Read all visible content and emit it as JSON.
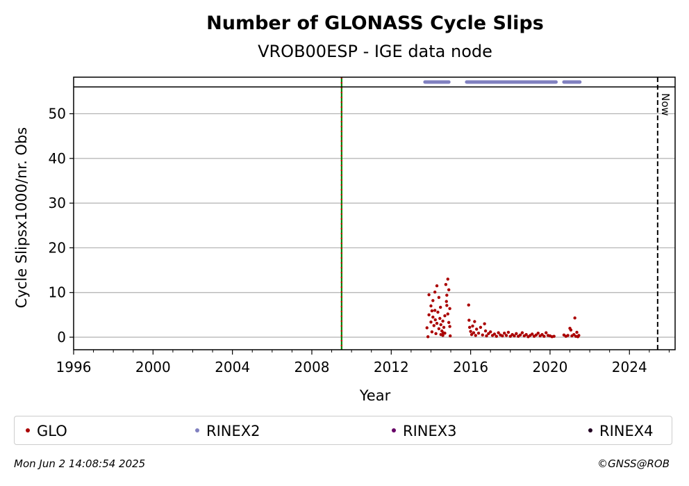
{
  "chart_data": {
    "type": "scatter",
    "title": "Number of GLONASS Cycle Slips",
    "subtitle": "VROB00ESP - IGE data node",
    "xlabel": "Year",
    "ylabel": "Cycle Slipsx1000/nr. Obs",
    "xlim": [
      1996,
      2026.3
    ],
    "ylim": [
      -2.8,
      56
    ],
    "x_ticks": [
      1996,
      2000,
      2004,
      2008,
      2012,
      2016,
      2020,
      2024
    ],
    "x_tick_labels": [
      "1996",
      "2000",
      "2004",
      "2008",
      "2012",
      "2016",
      "2020",
      "2024"
    ],
    "y_ticks": [
      0,
      10,
      20,
      30,
      40,
      50
    ],
    "y_tick_labels": [
      "0",
      "10",
      "20",
      "30",
      "40",
      "50"
    ],
    "grid": "horizontal",
    "vertical_lines": [
      {
        "x": 2009.5,
        "style": "solid+dotted",
        "colors": [
          "#008000",
          "#cc0000"
        ]
      },
      {
        "x": 2025.42,
        "style": "dashed",
        "color": "#000000",
        "label": "Now"
      }
    ],
    "rinex_availability": [
      {
        "name": "RINEX2",
        "ranges": [
          [
            2013.7,
            2014.9
          ],
          [
            2015.8,
            2020.3
          ],
          [
            2020.7,
            2021.5
          ]
        ]
      }
    ],
    "series": [
      {
        "name": "GLO",
        "color": "#aa0000",
        "points": [
          [
            2013.8,
            2.1
          ],
          [
            2013.9,
            5.0
          ],
          [
            2013.9,
            9.5
          ],
          [
            2014.0,
            3.4
          ],
          [
            2014.0,
            7.0
          ],
          [
            2014.05,
            1.2
          ],
          [
            2014.1,
            4.5
          ],
          [
            2014.1,
            8.2
          ],
          [
            2014.15,
            2.6
          ],
          [
            2014.2,
            10.1
          ],
          [
            2014.2,
            6.0
          ],
          [
            2014.25,
            0.8
          ],
          [
            2014.3,
            11.5
          ],
          [
            2014.3,
            3.1
          ],
          [
            2014.35,
            5.6
          ],
          [
            2014.4,
            8.9
          ],
          [
            2014.4,
            1.9
          ],
          [
            2014.45,
            4.2
          ],
          [
            2014.5,
            0.6
          ],
          [
            2014.5,
            2.8
          ],
          [
            2014.55,
            1.4
          ],
          [
            2014.6,
            0.4
          ],
          [
            2014.6,
            3.6
          ],
          [
            2014.65,
            2.2
          ],
          [
            2014.7,
            0.9
          ],
          [
            2014.7,
            4.8
          ],
          [
            2014.75,
            11.8
          ],
          [
            2014.8,
            9.4
          ],
          [
            2014.8,
            7.1
          ],
          [
            2014.85,
            13.0
          ],
          [
            2014.85,
            5.2
          ],
          [
            2014.9,
            10.6
          ],
          [
            2014.9,
            3.3
          ],
          [
            2014.95,
            2.4
          ],
          [
            2014.95,
            6.4
          ],
          [
            2014.97,
            0.3
          ],
          [
            2013.85,
            0.1
          ],
          [
            2014.05,
            5.9
          ],
          [
            2014.22,
            3.9
          ],
          [
            2014.48,
            6.7
          ],
          [
            2014.62,
            1.0
          ],
          [
            2014.78,
            8.0
          ],
          [
            2015.9,
            7.2
          ],
          [
            2015.92,
            3.8
          ],
          [
            2015.95,
            2.2
          ],
          [
            2016.0,
            1.3
          ],
          [
            2016.05,
            0.6
          ],
          [
            2016.1,
            2.5
          ],
          [
            2016.15,
            1.0
          ],
          [
            2016.2,
            3.5
          ],
          [
            2016.25,
            0.4
          ],
          [
            2016.3,
            1.8
          ],
          [
            2016.4,
            0.9
          ],
          [
            2016.5,
            2.2
          ],
          [
            2016.6,
            0.5
          ],
          [
            2016.7,
            3.0
          ],
          [
            2016.75,
            1.4
          ],
          [
            2016.8,
            0.3
          ],
          [
            2016.9,
            0.8
          ],
          [
            2017.0,
            1.2
          ],
          [
            2017.1,
            0.4
          ],
          [
            2017.2,
            0.7
          ],
          [
            2017.3,
            0.2
          ],
          [
            2017.4,
            1.0
          ],
          [
            2017.5,
            0.5
          ],
          [
            2017.6,
            0.3
          ],
          [
            2017.7,
            0.9
          ],
          [
            2017.8,
            0.4
          ],
          [
            2017.9,
            1.1
          ],
          [
            2018.0,
            0.2
          ],
          [
            2018.1,
            0.6
          ],
          [
            2018.2,
            0.3
          ],
          [
            2018.3,
            0.8
          ],
          [
            2018.4,
            0.2
          ],
          [
            2018.5,
            0.5
          ],
          [
            2018.6,
            1.0
          ],
          [
            2018.7,
            0.3
          ],
          [
            2018.8,
            0.6
          ],
          [
            2018.9,
            0.1
          ],
          [
            2019.0,
            0.4
          ],
          [
            2019.1,
            0.7
          ],
          [
            2019.2,
            0.2
          ],
          [
            2019.3,
            0.5
          ],
          [
            2019.4,
            0.9
          ],
          [
            2019.5,
            0.3
          ],
          [
            2019.6,
            0.6
          ],
          [
            2019.7,
            0.2
          ],
          [
            2019.8,
            1.0
          ],
          [
            2019.9,
            0.4
          ],
          [
            2020.0,
            0.3
          ],
          [
            2020.1,
            0.1
          ],
          [
            2020.2,
            0.2
          ],
          [
            2020.7,
            0.5
          ],
          [
            2020.8,
            0.2
          ],
          [
            2020.9,
            0.4
          ],
          [
            2021.0,
            2.0
          ],
          [
            2021.05,
            1.6
          ],
          [
            2021.1,
            0.3
          ],
          [
            2021.2,
            0.6
          ],
          [
            2021.25,
            4.3
          ],
          [
            2021.3,
            0.2
          ],
          [
            2021.35,
            1.1
          ],
          [
            2021.4,
            0.1
          ],
          [
            2021.45,
            0.4
          ]
        ]
      },
      {
        "name": "RINEX2",
        "color": "#8080c0",
        "points": []
      },
      {
        "name": "RINEX3",
        "color": "#660066",
        "points": []
      },
      {
        "name": "RINEX4",
        "color": "#220022",
        "points": []
      }
    ]
  },
  "legend": {
    "items": [
      {
        "label": "GLO",
        "color": "#aa0000"
      },
      {
        "label": "RINEX2",
        "color": "#8080c0"
      },
      {
        "label": "RINEX3",
        "color": "#660066"
      },
      {
        "label": "RINEX4",
        "color": "#220022"
      }
    ]
  },
  "footer": {
    "timestamp": "Mon Jun  2 14:08:54 2025",
    "credit": "©GNSS@ROB"
  }
}
